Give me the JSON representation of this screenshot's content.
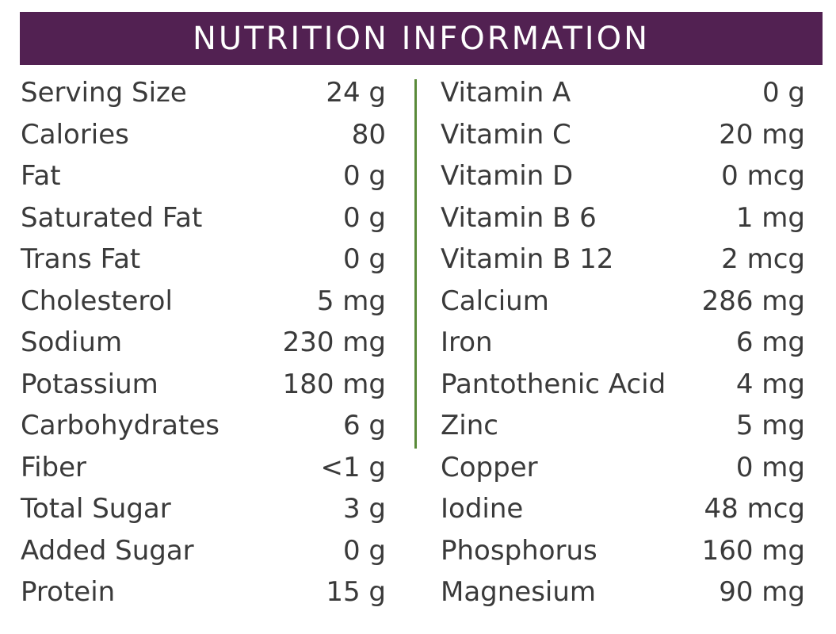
{
  "title": "NUTRITION INFORMATION",
  "colors": {
    "banner": "#522152",
    "divider": "#5a8a3a",
    "text": "#3a3a3a"
  },
  "left_column": [
    {
      "label": "Serving Size",
      "value": "24 g"
    },
    {
      "label": "Calories",
      "value": "80"
    },
    {
      "label": "Fat",
      "value": "0 g"
    },
    {
      "label": "Saturated Fat",
      "value": "0 g"
    },
    {
      "label": "Trans Fat",
      "value": "0 g"
    },
    {
      "label": "Cholesterol",
      "value": "5 mg"
    },
    {
      "label": "Sodium",
      "value": "230 mg"
    },
    {
      "label": "Potassium",
      "value": "180 mg"
    },
    {
      "label": "Carbohydrates",
      "value": "6 g"
    },
    {
      "label": "Fiber",
      "value": "<1 g"
    },
    {
      "label": "Total Sugar",
      "value": "3 g"
    },
    {
      "label": "Added Sugar",
      "value": "0 g"
    },
    {
      "label": "Protein",
      "value": "15 g"
    }
  ],
  "right_column": [
    {
      "label": "Vitamin A",
      "value": "0 g"
    },
    {
      "label": "Vitamin C",
      "value": "20 mg"
    },
    {
      "label": "Vitamin D",
      "value": "0 mcg"
    },
    {
      "label": "Vitamin B 6",
      "value": "1 mg"
    },
    {
      "label": "Vitamin B 12",
      "value": "2 mcg"
    },
    {
      "label": "Calcium",
      "value": "286 mg"
    },
    {
      "label": "Iron",
      "value": "6 mg"
    },
    {
      "label": "Pantothenic Acid",
      "value": "4 mg"
    },
    {
      "label": "Zinc",
      "value": "5 mg"
    },
    {
      "label": "Copper",
      "value": "0 mg"
    },
    {
      "label": "Iodine",
      "value": "48 mcg"
    },
    {
      "label": "Phosphorus",
      "value": "160 mg"
    },
    {
      "label": "Magnesium",
      "value": "90 mg"
    }
  ]
}
